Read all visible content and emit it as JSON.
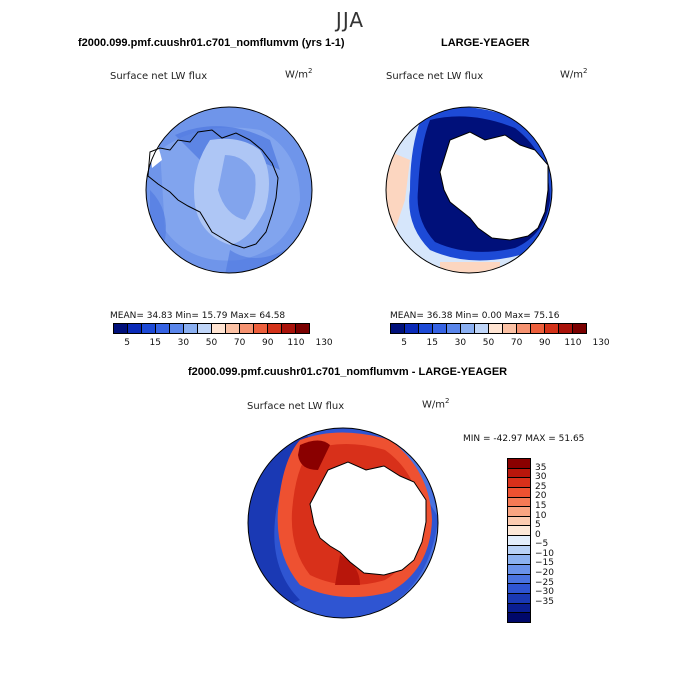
{
  "season": "JJA",
  "panel_left": {
    "title": "f2000.099.pmf.cuushr01.c701_nomflumvm (yrs 1-1)",
    "variable": "Surface net LW flux",
    "units_base": "W/m",
    "units_exp": "2",
    "stats": "MEAN=   34.83   Min=   15.79   Max=   64.58",
    "fill": "#6f95ea"
  },
  "panel_right": {
    "title": "LARGE-YEAGER",
    "variable": "Surface net LW flux",
    "units_base": "W/m",
    "units_exp": "2",
    "stats": "MEAN=   36.38   Min=    0.00   Max=   75.16",
    "fill": "#d6e6fb"
  },
  "top_colorbar": {
    "colors": [
      "#00107a",
      "#0a2ab8",
      "#1d4ad6",
      "#3663e3",
      "#5a86eb",
      "#8aaff1",
      "#bfd5f8",
      "#ffe4d2",
      "#fbc1a4",
      "#f59270",
      "#ec5f3c",
      "#d33219",
      "#a9120a",
      "#7a0000"
    ],
    "labels": [
      "5",
      "15",
      "30",
      "50",
      "70",
      "90",
      "110",
      "130"
    ]
  },
  "panel_diff": {
    "title": "f2000.099.pmf.cuushr01.c701_nomflumvm - LARGE-YEAGER",
    "variable": "Surface net LW flux",
    "units_base": "W/m",
    "units_exp": "2",
    "minmax": "MIN = -42.97 MAX =  51.65"
  },
  "diff_colorbar": {
    "colors": [
      "#8a0000",
      "#b8160b",
      "#d8301a",
      "#ee5131",
      "#f57a55",
      "#f9a582",
      "#fccbb0",
      "#fde8d8",
      "#e3eefc",
      "#b9d2f7",
      "#8cb1f0",
      "#6a92ea",
      "#4a73e0",
      "#2f55d2",
      "#1a39b4",
      "#0a1e92",
      "#00086a"
    ],
    "labels": [
      "35",
      "30",
      "25",
      "20",
      "15",
      "10",
      "5",
      "0",
      "−5",
      "−10",
      "−15",
      "−20",
      "−25",
      "−30",
      "−35"
    ]
  }
}
